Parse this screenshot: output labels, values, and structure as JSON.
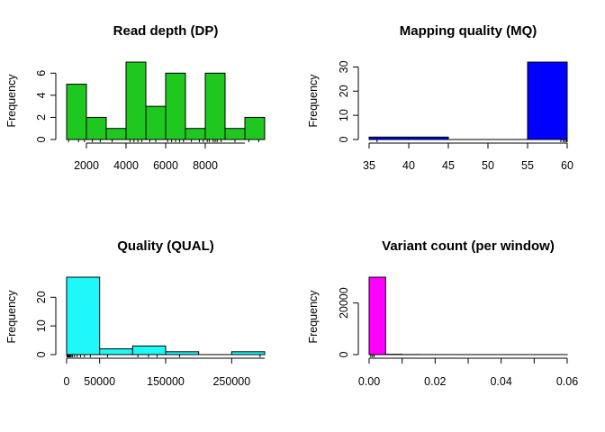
{
  "chart_data": [
    {
      "type": "bar",
      "title": "Read depth (DP)",
      "xlabel": "",
      "ylabel": "Frequency",
      "color": "#1ec81e",
      "bins": [
        [
          1000,
          2000
        ],
        [
          2000,
          3000
        ],
        [
          3000,
          4000
        ],
        [
          4000,
          5000
        ],
        [
          5000,
          6000
        ],
        [
          6000,
          7000
        ],
        [
          7000,
          8000
        ],
        [
          8000,
          9000
        ],
        [
          9000,
          10000
        ],
        [
          10000,
          11000
        ]
      ],
      "values": [
        5,
        2,
        1,
        7,
        3,
        6,
        1,
        6,
        1,
        2
      ],
      "xlim": [
        1000,
        11000
      ],
      "ylim": [
        0,
        7
      ],
      "x_ticks": [
        2000,
        4000,
        6000,
        8000
      ],
      "x_tick_labels": [
        "2000",
        "4000",
        "6000",
        "8000"
      ],
      "y_ticks": [
        0,
        2,
        4,
        6
      ],
      "y_tick_labels": [
        "0",
        "2",
        "4",
        "6"
      ],
      "rug": [
        1100,
        1600,
        1900,
        2300,
        2700,
        3300,
        4200,
        4400,
        4600,
        4800,
        5200,
        5500,
        6100,
        6300,
        6500,
        6700,
        6900,
        7300,
        7700,
        7900,
        8100,
        8200,
        8400,
        8500,
        8600,
        8800,
        9500,
        10200,
        10700
      ]
    },
    {
      "type": "bar",
      "title": "Mapping quality (MQ)",
      "xlabel": "",
      "ylabel": "Frequency",
      "color": "#0000ff",
      "bins": [
        [
          35,
          45
        ],
        [
          45,
          55
        ],
        [
          55,
          60
        ]
      ],
      "values": [
        1,
        0,
        32
      ],
      "xlim": [
        35,
        60
      ],
      "ylim": [
        0,
        32
      ],
      "x_ticks": [
        35,
        40,
        45,
        50,
        55,
        60
      ],
      "x_tick_labels": [
        "35",
        "40",
        "45",
        "50",
        "55",
        "60"
      ],
      "y_ticks": [
        0,
        10,
        20,
        30
      ],
      "y_tick_labels": [
        "0",
        "10",
        "20",
        "30"
      ],
      "rug": [
        36,
        59.2,
        59.5,
        59.7,
        59.9,
        60
      ]
    },
    {
      "type": "bar",
      "title": "Quality (QUAL)",
      "xlabel": "",
      "ylabel": "Frequency",
      "color": "#1ef8f8",
      "bins": [
        [
          0,
          50000
        ],
        [
          50000,
          100000
        ],
        [
          100000,
          150000
        ],
        [
          150000,
          200000
        ],
        [
          200000,
          250000
        ],
        [
          250000,
          300000
        ]
      ],
      "values": [
        27,
        2,
        3,
        1,
        0,
        1
      ],
      "xlim": [
        0,
        300000
      ],
      "ylim": [
        0,
        27
      ],
      "x_ticks": [
        0,
        50000,
        150000,
        250000
      ],
      "x_tick_labels": [
        "0",
        "50000",
        "150000",
        "250000"
      ],
      "y_ticks": [
        0,
        10,
        20
      ],
      "y_tick_labels": [
        "0",
        "10",
        "20"
      ],
      "rug": [
        500,
        1200,
        2000,
        3000,
        4200,
        5500,
        7000,
        9000,
        12000,
        16000,
        21000,
        27000,
        36000,
        62000,
        108000,
        124000,
        137000,
        171000,
        293000
      ]
    },
    {
      "type": "bar",
      "title": "Variant count (per window)",
      "xlabel": "",
      "ylabel": "Frequency",
      "color": "#ff00ff",
      "bins": [
        [
          0,
          0.005
        ],
        [
          0.005,
          0.01
        ],
        [
          0.01,
          0.015
        ],
        [
          0.015,
          0.02
        ],
        [
          0.02,
          0.025
        ],
        [
          0.025,
          0.03
        ],
        [
          0.03,
          0.035
        ],
        [
          0.035,
          0.04
        ],
        [
          0.04,
          0.045
        ],
        [
          0.045,
          0.05
        ],
        [
          0.05,
          0.055
        ],
        [
          0.055,
          0.06
        ]
      ],
      "values": [
        30000,
        120,
        40,
        15,
        8,
        5,
        3,
        2,
        1,
        1,
        1,
        1
      ],
      "xlim": [
        0,
        0.06
      ],
      "ylim": [
        0,
        30000
      ],
      "x_ticks": [
        0,
        0.02,
        0.04,
        0.06
      ],
      "x_tick_labels": [
        "0.00",
        "0.02",
        "0.04",
        "0.06"
      ],
      "x_minor_ticks": [
        0.01,
        0.03,
        0.05
      ],
      "y_ticks": [
        0,
        20000
      ],
      "y_tick_labels": [
        "0",
        "20000"
      ],
      "rug": [
        0.0005,
        0.001,
        0.0015
      ]
    }
  ]
}
